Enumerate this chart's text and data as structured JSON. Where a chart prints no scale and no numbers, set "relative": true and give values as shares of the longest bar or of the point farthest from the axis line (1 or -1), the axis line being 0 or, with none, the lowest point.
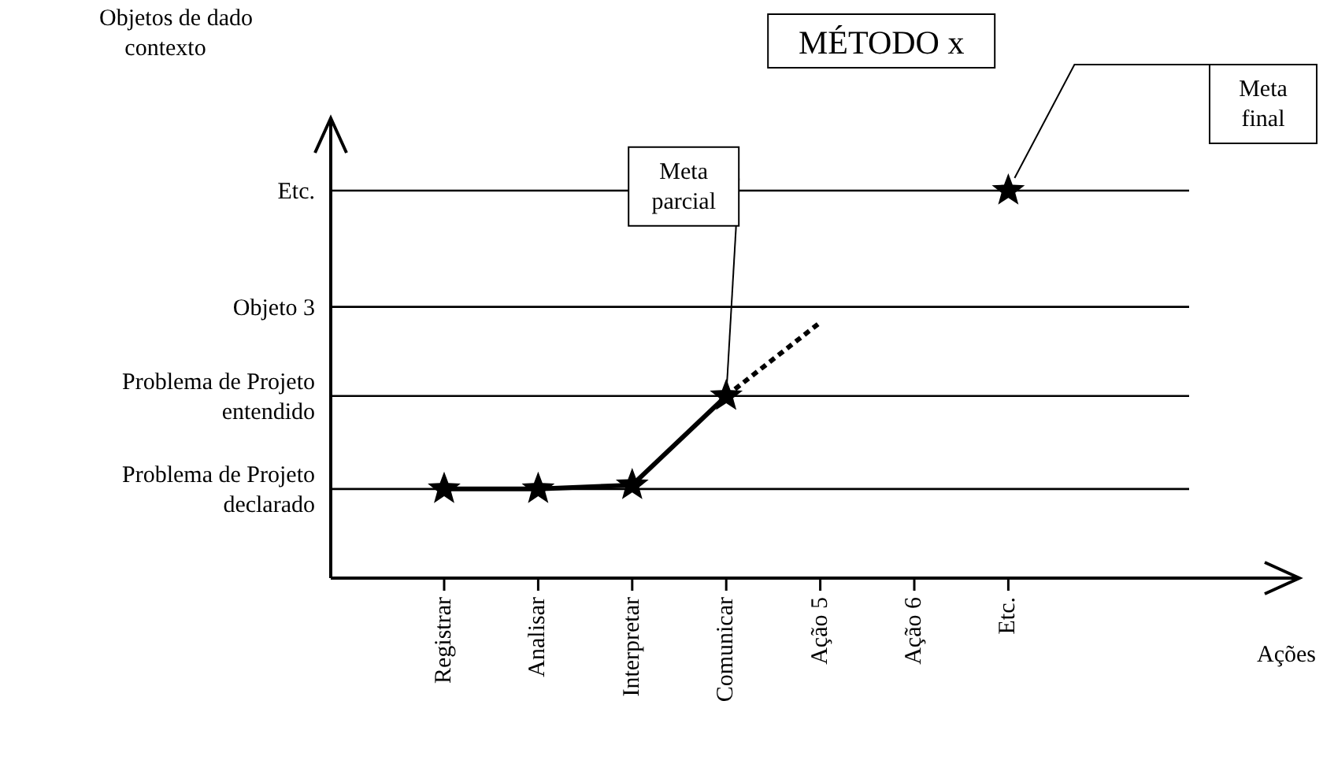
{
  "chart_data": {
    "type": "line",
    "title": "MÉTODO x",
    "relative": true,
    "categories": [
      "Registrar",
      "Analisar",
      "Interpretar",
      "Comunicar",
      "Ação 5",
      "Ação 6",
      "Etc."
    ],
    "ref_lines": [
      {
        "axis": "y",
        "value": 0.23,
        "label": "Problema de Projeto\ndeclarado"
      },
      {
        "axis": "y",
        "value": 0.47,
        "label": "Problema de Projeto\nentendido"
      },
      {
        "axis": "y",
        "value": 0.7,
        "label": "Objeto 3"
      },
      {
        "axis": "y",
        "value": 1,
        "label": "Etc."
      }
    ],
    "series": [
      {
        "color": "#000000",
        "marker": "star",
        "line_style": "solid",
        "values": [
          0.23,
          0.23,
          0.24,
          0.47,
          null,
          null,
          null
        ]
      },
      {
        "color": "#000000",
        "marker": "none",
        "line_style": "dotted",
        "values": [
          null,
          null,
          null,
          0.47,
          0.66,
          null,
          null
        ]
      },
      {
        "type": "scatter",
        "color": "#000000",
        "marker": "star",
        "values": [
          null,
          null,
          null,
          null,
          null,
          null,
          1
        ]
      }
    ],
    "annotations": [
      {
        "text": "Meta\nparcial",
        "x": "Comunicar",
        "y": 0.47
      },
      "Meta\nfinal",
      "Objetos de dado\ncontexto",
      "Ações"
    ]
  }
}
